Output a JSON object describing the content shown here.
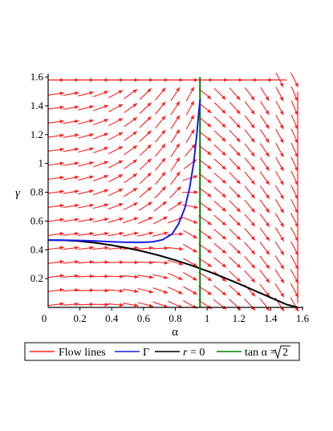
{
  "chart_data": {
    "type": "line",
    "xlabel": "α",
    "ylabel": "γ",
    "xlim": [
      0,
      1.6
    ],
    "ylim": [
      0,
      1.6
    ],
    "x_ticks": [
      "0",
      "0.2",
      "0.4",
      "0.6",
      "0.8",
      "1",
      "1.2",
      "1.4",
      "1.6"
    ],
    "y_ticks": [
      "0.2",
      "0.4",
      "0.6",
      "0.8",
      "1",
      "1.2",
      "1.4",
      "1.6"
    ],
    "grid": false,
    "legend_position": "bottom",
    "series": [
      {
        "name": "Flow lines",
        "kind": "direction-field",
        "color": "#ff2020",
        "vectors": [
          {
            "x": 0.05,
            "y": 1.58,
            "dx": 0.1,
            "dy": 0.0
          },
          {
            "x": 0.95,
            "y": 1.58,
            "dx": 0.1,
            "dy": 0.0
          },
          {
            "x": 1.5,
            "y": 1.58,
            "dx": 0.04,
            "dy": -0.09
          },
          {
            "x": 0.05,
            "y": 0.8,
            "dx": 0.1,
            "dy": 0.015
          },
          {
            "x": 0.75,
            "y": 0.8,
            "dx": 0.08,
            "dy": 0.07
          },
          {
            "x": 1.1,
            "y": 0.8,
            "dx": 0.04,
            "dy": -0.09
          },
          {
            "x": 0.3,
            "y": 0.2,
            "dx": 0.1,
            "dy": 0.02
          },
          {
            "x": 1.3,
            "y": 0.2,
            "dx": 0.03,
            "dy": -0.09
          }
        ]
      },
      {
        "name": "Γ",
        "color": "#1a1aee",
        "x": [
          0,
          0.1,
          0.2,
          0.3,
          0.4,
          0.5,
          0.6,
          0.66,
          0.72,
          0.78,
          0.82,
          0.86,
          0.89,
          0.915,
          0.935,
          0.95,
          0.957
        ],
        "y": [
          0.468,
          0.467,
          0.465,
          0.461,
          0.456,
          0.452,
          0.452,
          0.456,
          0.47,
          0.51,
          0.58,
          0.69,
          0.83,
          1.0,
          1.2,
          1.38,
          1.45
        ]
      },
      {
        "name": "r = 0",
        "color": "#000000",
        "x": [
          0,
          0.1,
          0.2,
          0.3,
          0.4,
          0.5,
          0.6,
          0.7,
          0.8,
          0.9,
          1.0,
          1.1,
          1.2,
          1.3,
          1.4,
          1.5,
          1.57
        ],
        "y": [
          0.468,
          0.466,
          0.46,
          0.448,
          0.432,
          0.412,
          0.388,
          0.36,
          0.328,
          0.292,
          0.253,
          0.21,
          0.164,
          0.116,
          0.068,
          0.02,
          0.0
        ]
      },
      {
        "name": "tan α = √2",
        "color": "#008000",
        "x": [
          0.9553,
          0.9553
        ],
        "y": [
          0,
          1.6
        ]
      }
    ]
  },
  "legend": {
    "items": [
      {
        "label": "Flow lines"
      },
      {
        "label": "Γ"
      },
      {
        "label": "r = 0",
        "prefix": "r",
        "suffix": " = 0"
      },
      {
        "label": "tan α = √2",
        "prefix": "tan α = ",
        "radicand": "2"
      }
    ]
  }
}
